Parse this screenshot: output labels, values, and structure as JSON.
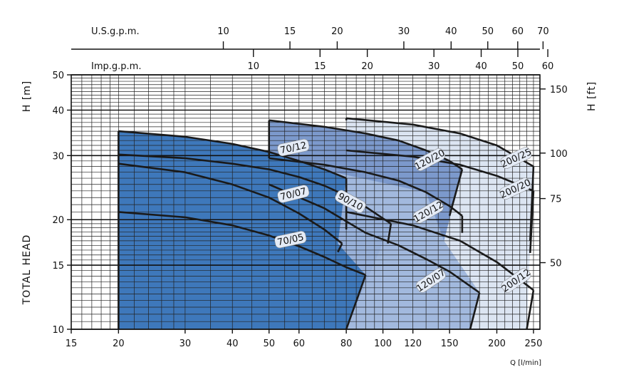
{
  "chart_data": {
    "type": "area",
    "x_axis": {
      "label": "Q [l/min]",
      "scale": "log",
      "range": [
        15,
        260
      ],
      "ticks": [
        15,
        20,
        30,
        40,
        50,
        60,
        80,
        100,
        120,
        150,
        200,
        250
      ]
    },
    "y_axis_left": {
      "label": "H [m]",
      "scale": "log",
      "range": [
        10,
        50
      ],
      "ticks": [
        10,
        15,
        20,
        30,
        40,
        50
      ]
    },
    "y_axis_left_title": "TOTAL HEAD",
    "y_axis_right": {
      "label": "H [ft]",
      "ticks": [
        50,
        75,
        100,
        150
      ]
    },
    "top_axis_us": {
      "label": "U.S.g.p.m.",
      "ticks": [
        10,
        15,
        20,
        30,
        40,
        50,
        60,
        70
      ]
    },
    "top_axis_imp": {
      "label": "Imp.g.p.m.",
      "ticks": [
        10,
        15,
        20,
        30,
        40,
        50,
        60
      ]
    },
    "grid": true,
    "series": [
      {
        "name": "70/12",
        "x": [
          20,
          30,
          40,
          50,
          60,
          70,
          80
        ],
        "y": [
          35,
          33.8,
          32.3,
          30.7,
          29,
          27.5,
          26
        ]
      },
      {
        "name": "70/07",
        "x": [
          20,
          30,
          40,
          50,
          60,
          70,
          78
        ],
        "y": [
          28.5,
          27,
          25,
          23,
          20.8,
          18.8,
          17.2
        ]
      },
      {
        "name": "70/05",
        "x": [
          20,
          30,
          40,
          50,
          60,
          70,
          80,
          90
        ],
        "y": [
          21,
          20.3,
          19.3,
          18.1,
          16.9,
          15.8,
          14.8,
          14.1
        ]
      },
      {
        "name": "90/10",
        "x": [
          20,
          30,
          40,
          50,
          60,
          70,
          80,
          90,
          105
        ],
        "y": [
          30.2,
          29.5,
          28.5,
          27.5,
          26.2,
          24.8,
          23.3,
          21.7,
          19.5
        ]
      },
      {
        "name": "120/20",
        "x": [
          50,
          70,
          90,
          110,
          130,
          150,
          162
        ],
        "y": [
          37.5,
          36,
          34.5,
          33,
          31,
          29,
          27.5
        ]
      },
      {
        "name": "120/12",
        "x": [
          50,
          70,
          90,
          110,
          130,
          150,
          162
        ],
        "y": [
          29.5,
          28.3,
          27,
          25.6,
          23.8,
          21.8,
          20.5
        ]
      },
      {
        "name": "120/07",
        "x": [
          50,
          70,
          90,
          110,
          130,
          150,
          180
        ],
        "y": [
          25,
          21.5,
          18.4,
          17,
          15.6,
          14.4,
          12.6
        ]
      },
      {
        "name": "200/25",
        "x": [
          80,
          120,
          160,
          200,
          250
        ],
        "y": [
          38,
          36.5,
          34.5,
          32,
          28
        ]
      },
      {
        "name": "200/20",
        "x": [
          80,
          120,
          160,
          200,
          250
        ],
        "y": [
          31,
          29.8,
          28.3,
          26.4,
          24
        ]
      },
      {
        "name": "200/12",
        "x": [
          80,
          120,
          160,
          200,
          250
        ],
        "y": [
          21,
          19.3,
          17.5,
          15.3,
          12.8
        ]
      }
    ]
  }
}
